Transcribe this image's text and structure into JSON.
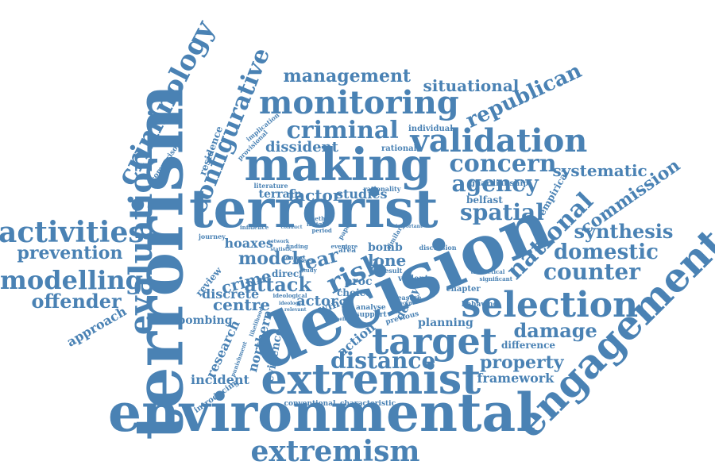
{
  "colors": {
    "text": "#4a82b4",
    "background": "#ffffff"
  },
  "words": [
    {
      "id": "terrorism",
      "text": "terrorism"
    },
    {
      "id": "decision",
      "text": "decision"
    },
    {
      "id": "environmental",
      "text": "environmental"
    },
    {
      "id": "terrorist",
      "text": "terrorist"
    },
    {
      "id": "making",
      "text": "making"
    },
    {
      "id": "extremist",
      "text": "extremist"
    },
    {
      "id": "engagement",
      "text": "engagement"
    },
    {
      "id": "selection",
      "text": "selection"
    },
    {
      "id": "target",
      "text": "target"
    },
    {
      "id": "evaluation",
      "text": "evaluation"
    },
    {
      "id": "monitoring",
      "text": "monitoring"
    },
    {
      "id": "criminology",
      "text": "criminology"
    },
    {
      "id": "extremism",
      "text": "extremism"
    },
    {
      "id": "validation",
      "text": "validation"
    },
    {
      "id": "activities",
      "text": "activities"
    },
    {
      "id": "modelling",
      "text": "modelling"
    },
    {
      "id": "configurative",
      "text": "configurative"
    },
    {
      "id": "risk",
      "text": "risk"
    },
    {
      "id": "criminal",
      "text": "criminal"
    },
    {
      "id": "national",
      "text": "national"
    },
    {
      "id": "concern",
      "text": "concern"
    },
    {
      "id": "agency",
      "text": "agency"
    },
    {
      "id": "republican",
      "text": "republican"
    },
    {
      "id": "spatial",
      "text": "spatial"
    },
    {
      "id": "distance",
      "text": "distance"
    },
    {
      "id": "counter",
      "text": "counter"
    },
    {
      "id": "domestic",
      "text": "domestic"
    },
    {
      "id": "synthesis",
      "text": "synthesis"
    },
    {
      "id": "damage",
      "text": "damage"
    },
    {
      "id": "offender",
      "text": "offender"
    },
    {
      "id": "prevention",
      "text": "prevention"
    },
    {
      "id": "management",
      "text": "management"
    },
    {
      "id": "attack",
      "text": "attack"
    },
    {
      "id": "situational",
      "text": "situational"
    },
    {
      "id": "model",
      "text": "model"
    },
    {
      "id": "fear",
      "text": "fear"
    },
    {
      "id": "commission",
      "text": "commission"
    },
    {
      "id": "systematic",
      "text": "systematic"
    },
    {
      "id": "property",
      "text": "property"
    },
    {
      "id": "centre",
      "text": "centre"
    },
    {
      "id": "crime",
      "text": "crime"
    },
    {
      "id": "factor",
      "text": "factor"
    },
    {
      "id": "dissident",
      "text": "dissident"
    },
    {
      "id": "approach",
      "text": "approach"
    },
    {
      "id": "framework",
      "text": "framework"
    },
    {
      "id": "actor",
      "text": "actor"
    },
    {
      "id": "lone",
      "text": "lone"
    },
    {
      "id": "bombing",
      "text": "bombing"
    },
    {
      "id": "hoaxes",
      "text": "hoaxes"
    },
    {
      "id": "incident",
      "text": "incident"
    },
    {
      "id": "studies",
      "text": "studies"
    },
    {
      "id": "discrete",
      "text": "discrete"
    },
    {
      "id": "research",
      "text": "research"
    },
    {
      "id": "northern",
      "text": "northern"
    },
    {
      "id": "evidence",
      "text": "evidence"
    },
    {
      "id": "action",
      "text": "action"
    },
    {
      "id": "planning",
      "text": "planning"
    },
    {
      "id": "difference",
      "text": "difference"
    },
    {
      "id": "terrain",
      "text": "terrain"
    },
    {
      "id": "residence",
      "text": "residence"
    },
    {
      "id": "review",
      "text": "review"
    },
    {
      "id": "bomb",
      "text": "bomb"
    },
    {
      "id": "proc",
      "text": "proc"
    },
    {
      "id": "direct",
      "text": "direct"
    },
    {
      "id": "decay",
      "text": "decay"
    },
    {
      "id": "wing",
      "text": "wing"
    },
    {
      "id": "choice",
      "text": "choice"
    },
    {
      "id": "empirical",
      "text": "empirical"
    },
    {
      "id": "belfast",
      "text": "belfast"
    },
    {
      "id": "guardianship",
      "text": "guardianship"
    },
    {
      "id": "rationality",
      "text": "rationality"
    },
    {
      "id": "individual",
      "text": "individual"
    },
    {
      "id": "rational",
      "text": "rational"
    },
    {
      "id": "comparison",
      "text": "comparison"
    },
    {
      "id": "literature",
      "text": "literature"
    },
    {
      "id": "implication",
      "text": "implication"
    },
    {
      "id": "provisional",
      "text": "provisional"
    },
    {
      "id": "journey",
      "text": "journey"
    },
    {
      "id": "introducing",
      "text": "introducing"
    },
    {
      "id": "conventional",
      "text": "conventional"
    },
    {
      "id": "characteristic",
      "text": "characteristic"
    },
    {
      "id": "violent",
      "text": "violent"
    },
    {
      "id": "result",
      "text": "result"
    },
    {
      "id": "chapter",
      "text": "chapter"
    },
    {
      "id": "behaving",
      "text": "behaving"
    },
    {
      "id": "theoretical",
      "text": "theoretical"
    },
    {
      "id": "significant",
      "text": "significant"
    },
    {
      "id": "discussion",
      "text": "discussion"
    },
    {
      "id": "analyse",
      "text": "analyse"
    },
    {
      "id": "support",
      "text": "support"
    },
    {
      "id": "previous",
      "text": "previous"
    },
    {
      "id": "measure",
      "text": "measure"
    },
    {
      "id": "area",
      "text": "area"
    },
    {
      "id": "more",
      "text": "more"
    },
    {
      "id": "event",
      "text": "event"
    },
    {
      "id": "period",
      "text": "period"
    },
    {
      "id": "study",
      "text": "study"
    },
    {
      "id": "chosen",
      "text": "chosen"
    },
    {
      "id": "context",
      "text": "context"
    },
    {
      "id": "ideological",
      "text": "ideological"
    },
    {
      "id": "punishment",
      "text": "punishment"
    },
    {
      "id": "likelihood",
      "text": "likelihood"
    },
    {
      "id": "method",
      "text": "method"
    },
    {
      "id": "insight",
      "text": "insight"
    },
    {
      "id": "finding",
      "text": "finding"
    },
    {
      "id": "influence",
      "text": "influence"
    },
    {
      "id": "network",
      "text": "network"
    },
    {
      "id": "important",
      "text": "important"
    },
    {
      "id": "similar",
      "text": "similar"
    },
    {
      "id": "paper",
      "text": "paper"
    },
    {
      "id": "recent",
      "text": "recent"
    },
    {
      "id": "ideology",
      "text": "ideology"
    },
    {
      "id": "relevant",
      "text": "relevant"
    },
    {
      "id": "behave",
      "text": "behave"
    },
    {
      "id": "conduct",
      "text": "conduct"
    },
    {
      "id": "statistic",
      "text": "statistic"
    }
  ]
}
